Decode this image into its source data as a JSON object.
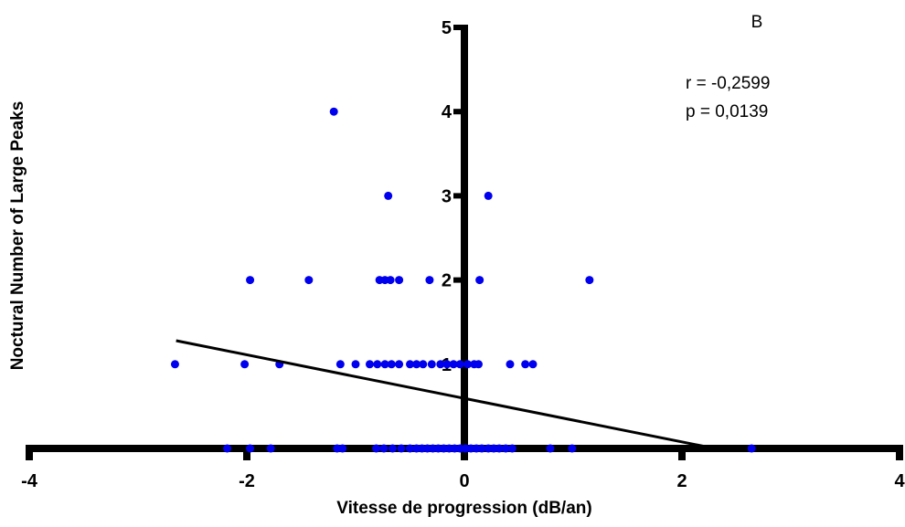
{
  "chart_data": {
    "type": "scatter",
    "panel_label": "B",
    "xlabel": "Vitesse de progression (dB/an)",
    "ylabel": "Noctural Number of Large Peaks",
    "xlim": [
      -4,
      4
    ],
    "ylim": [
      0,
      5
    ],
    "x_ticks": [
      -4,
      -2,
      0,
      2,
      4
    ],
    "y_ticks": [
      1,
      2,
      3,
      4,
      5
    ],
    "grid": false,
    "annotations": [
      "r = -0,2599",
      "p = 0,0139"
    ],
    "point_color": "#0000ee",
    "line_color": "#000000",
    "regression_line": {
      "x": [
        -2.65,
        2.3
      ],
      "y": [
        1.28,
        0.0
      ]
    },
    "points": [
      [
        -1.2,
        4
      ],
      [
        -0.7,
        3
      ],
      [
        0.22,
        3
      ],
      [
        -1.97,
        2
      ],
      [
        -1.43,
        2
      ],
      [
        -0.78,
        2
      ],
      [
        -0.73,
        2
      ],
      [
        -0.68,
        2
      ],
      [
        -0.6,
        2
      ],
      [
        -0.32,
        2
      ],
      [
        0.14,
        2
      ],
      [
        1.15,
        2
      ],
      [
        -2.66,
        1
      ],
      [
        -2.02,
        1
      ],
      [
        -1.7,
        1
      ],
      [
        -1.14,
        1
      ],
      [
        -1.0,
        1
      ],
      [
        -0.87,
        1
      ],
      [
        -0.8,
        1
      ],
      [
        -0.73,
        1
      ],
      [
        -0.67,
        1
      ],
      [
        -0.6,
        1
      ],
      [
        -0.5,
        1
      ],
      [
        -0.44,
        1
      ],
      [
        -0.38,
        1
      ],
      [
        -0.3,
        1
      ],
      [
        -0.22,
        1
      ],
      [
        -0.16,
        1
      ],
      [
        -0.1,
        1
      ],
      [
        -0.04,
        1
      ],
      [
        0.03,
        1
      ],
      [
        0.09,
        1
      ],
      [
        0.13,
        1
      ],
      [
        0.42,
        1
      ],
      [
        0.56,
        1
      ],
      [
        0.63,
        1
      ],
      [
        -2.18,
        0
      ],
      [
        -1.97,
        0
      ],
      [
        -1.78,
        0
      ],
      [
        -1.17,
        0
      ],
      [
        -1.12,
        0
      ],
      [
        -0.81,
        0
      ],
      [
        -0.74,
        0
      ],
      [
        -0.66,
        0
      ],
      [
        -0.58,
        0
      ],
      [
        -0.5,
        0
      ],
      [
        -0.44,
        0
      ],
      [
        -0.39,
        0
      ],
      [
        -0.34,
        0
      ],
      [
        -0.29,
        0
      ],
      [
        -0.24,
        0
      ],
      [
        -0.19,
        0
      ],
      [
        -0.14,
        0
      ],
      [
        -0.09,
        0
      ],
      [
        -0.04,
        0
      ],
      [
        0.01,
        0
      ],
      [
        0.06,
        0
      ],
      [
        0.11,
        0
      ],
      [
        0.16,
        0
      ],
      [
        0.22,
        0
      ],
      [
        0.27,
        0
      ],
      [
        0.32,
        0
      ],
      [
        0.38,
        0
      ],
      [
        0.44,
        0
      ],
      [
        0.79,
        0
      ],
      [
        0.99,
        0
      ],
      [
        2.64,
        0
      ]
    ]
  }
}
